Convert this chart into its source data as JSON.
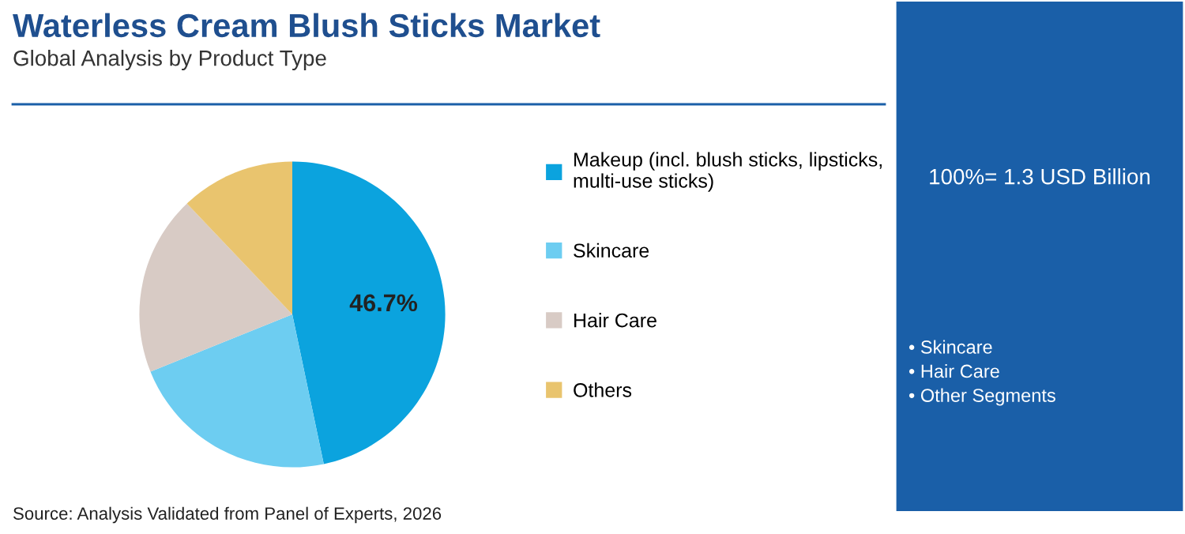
{
  "chart_data": {
    "type": "pie",
    "title": "Waterless Cream Blush Sticks Market",
    "subtitle": "Global Analysis by Product Type",
    "categories": [
      "Makeup (incl. blush sticks, lipsticks,\nmulti-use sticks)",
      "Skincare",
      "Hair Care",
      "Others"
    ],
    "values": [
      46.7,
      22.2,
      19.0,
      12.1
    ],
    "colors": [
      "#0ba3de",
      "#6dcdf1",
      "#d8cbc5",
      "#e9c46e"
    ],
    "value_labels": [
      "46.7%",
      null,
      null,
      null
    ],
    "legend": "right",
    "annotations": [
      "Source: Analysis Validated from Panel of Experts, 2026",
      "100%= 1.3 USD Billion",
      "• Skincare\n• Hair Care\n• Other Segments"
    ]
  }
}
